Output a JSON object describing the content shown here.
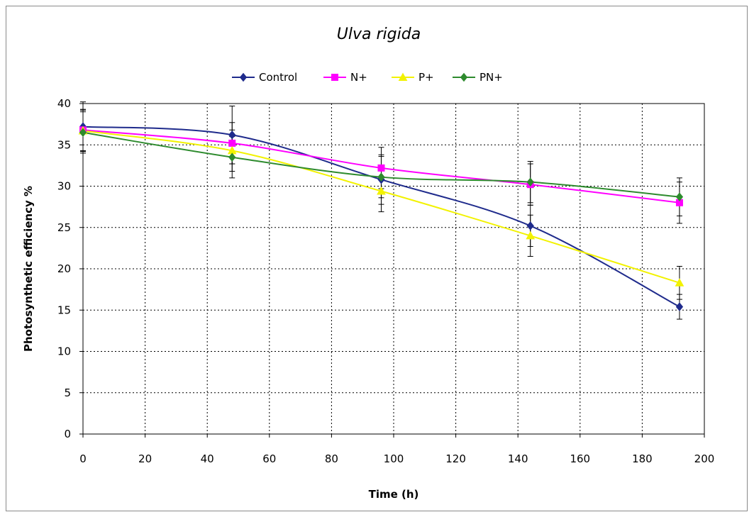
{
  "chart_data": {
    "type": "line",
    "title": "Ulva rigida",
    "xlabel": "Time (h)",
    "ylabel": "Photosynthetic efficiency %",
    "xlim": [
      0,
      200
    ],
    "ylim": [
      0,
      40
    ],
    "xticks": [
      0,
      20,
      40,
      60,
      80,
      100,
      120,
      140,
      160,
      180,
      200
    ],
    "yticks": [
      0,
      5,
      10,
      15,
      20,
      25,
      30,
      35,
      40
    ],
    "grid": true,
    "legend_position": "top",
    "series": [
      {
        "name": "Control",
        "color": "#1f2b8c",
        "marker": "diamond",
        "x": [
          0,
          48,
          96,
          144,
          192
        ],
        "y": [
          37.2,
          36.2,
          30.8,
          25.2,
          15.4
        ],
        "err": [
          3.0,
          3.5,
          3.0,
          2.5,
          1.5
        ]
      },
      {
        "name": "N+",
        "color": "#ff00ff",
        "marker": "square",
        "x": [
          0,
          48,
          96,
          144,
          192
        ],
        "y": [
          36.8,
          35.2,
          32.2,
          30.2,
          28.0
        ],
        "err": [
          2.5,
          2.5,
          2.5,
          2.5,
          2.5
        ]
      },
      {
        "name": "P+",
        "color": "#f2f200",
        "marker": "triangle",
        "x": [
          0,
          48,
          96,
          144,
          192
        ],
        "y": [
          36.7,
          34.3,
          29.4,
          24.0,
          18.3
        ],
        "err": [
          2.5,
          2.5,
          2.5,
          2.5,
          2.0
        ]
      },
      {
        "name": "PN+",
        "color": "#2e8b2e",
        "marker": "diamond",
        "x": [
          0,
          48,
          96,
          144,
          192
        ],
        "y": [
          36.5,
          33.5,
          31.1,
          30.5,
          28.7
        ],
        "err": [
          2.5,
          2.5,
          2.5,
          2.5,
          2.3
        ]
      }
    ]
  }
}
